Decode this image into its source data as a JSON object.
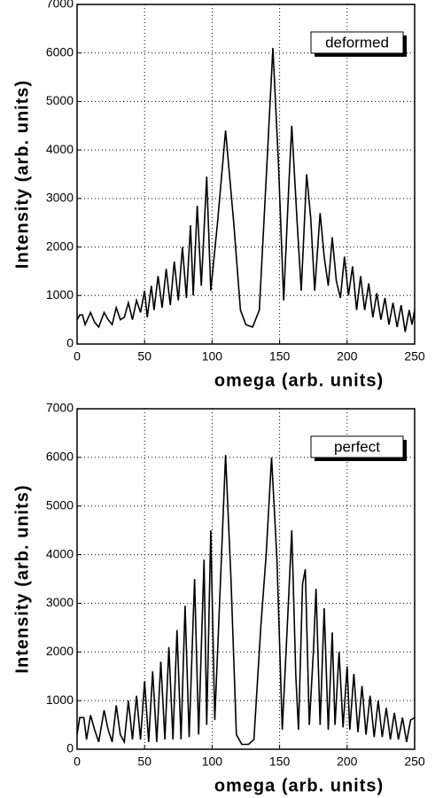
{
  "chart_data": [
    {
      "type": "line",
      "xlabel": "omega (arb. units)",
      "ylabel": "Intensity (arb. units)",
      "x": [
        0,
        2,
        4,
        6,
        10,
        13,
        16,
        20,
        23,
        26,
        29,
        32,
        35,
        38,
        41,
        44,
        47,
        50,
        52,
        55,
        57,
        60,
        63,
        66,
        69,
        72,
        75,
        78,
        81,
        84,
        86,
        89,
        92,
        96,
        99,
        104,
        110,
        116,
        121,
        125,
        130,
        135,
        140,
        145,
        149,
        153,
        157,
        159,
        163,
        166,
        170,
        173,
        176,
        180,
        183,
        186,
        189,
        192,
        195,
        198,
        201,
        204,
        207,
        210,
        213,
        216,
        219,
        222,
        225,
        228,
        231,
        234,
        237,
        240,
        243,
        246,
        248,
        250
      ],
      "series": [
        {
          "name": "deformed",
          "color": "#000000",
          "values": [
            500,
            600,
            600,
            400,
            650,
            450,
            350,
            650,
            500,
            400,
            750,
            500,
            550,
            850,
            500,
            900,
            650,
            1100,
            550,
            1200,
            700,
            1400,
            750,
            1550,
            800,
            1700,
            900,
            2000,
            950,
            2450,
            1000,
            2850,
            1200,
            3450,
            1100,
            2500,
            4400,
            2500,
            700,
            400,
            350,
            700,
            3400,
            6100,
            3800,
            900,
            3400,
            4500,
            2500,
            1100,
            3500,
            2600,
            1100,
            2700,
            1800,
            1200,
            2200,
            1300,
            950,
            1800,
            1000,
            1600,
            700,
            1400,
            700,
            1250,
            550,
            1050,
            500,
            950,
            400,
            850,
            350,
            800,
            250,
            700,
            400,
            700
          ]
        }
      ],
      "xlim": [
        0,
        250
      ],
      "xticks": [
        0,
        50,
        100,
        150,
        200,
        250
      ],
      "ylim": [
        0,
        7000
      ],
      "yticks": [
        0,
        1000,
        2000,
        3000,
        4000,
        5000,
        6000,
        7000
      ],
      "grid": true,
      "legend": "upper right"
    },
    {
      "type": "line",
      "xlabel": "omega (arb. units)",
      "ylabel": "Intensity (arb. units)",
      "x": [
        0,
        2,
        5,
        7,
        10,
        13,
        16,
        20,
        23,
        26,
        29,
        32,
        35,
        38,
        41,
        44,
        47,
        50,
        53,
        56,
        59,
        62,
        65,
        68,
        71,
        74,
        77,
        80,
        83,
        87,
        90,
        94,
        96,
        99,
        102,
        106,
        110,
        114,
        118,
        122,
        127,
        131,
        136,
        140,
        144,
        148,
        152,
        156,
        159,
        162,
        164,
        167,
        169,
        172,
        175,
        177,
        180,
        183,
        186,
        189,
        191,
        194,
        197,
        200,
        202,
        205,
        208,
        211,
        214,
        217,
        220,
        223,
        226,
        229,
        232,
        235,
        238,
        241,
        244,
        247,
        250
      ],
      "series": [
        {
          "name": "perfect",
          "color": "#000000",
          "values": [
            300,
            650,
            650,
            200,
            700,
            400,
            150,
            800,
            400,
            150,
            900,
            300,
            150,
            1000,
            200,
            1100,
            200,
            1400,
            150,
            1600,
            150,
            1800,
            200,
            2100,
            200,
            2450,
            200,
            2950,
            250,
            3500,
            300,
            3900,
            500,
            4500,
            600,
            3300,
            6050,
            3500,
            300,
            100,
            100,
            200,
            2500,
            4000,
            6000,
            3900,
            400,
            2700,
            4500,
            1500,
            400,
            3400,
            3700,
            500,
            2000,
            3300,
            500,
            2900,
            400,
            2400,
            500,
            2000,
            450,
            1700,
            400,
            1550,
            350,
            1300,
            300,
            1100,
            250,
            1000,
            250,
            850,
            200,
            750,
            200,
            650,
            150,
            600,
            650
          ]
        }
      ],
      "xlim": [
        0,
        250
      ],
      "xticks": [
        0,
        50,
        100,
        150,
        200,
        250
      ],
      "ylim": [
        0,
        7000
      ],
      "yticks": [
        0,
        1000,
        2000,
        3000,
        4000,
        5000,
        6000,
        7000
      ],
      "grid": true,
      "legend": "upper right"
    }
  ]
}
